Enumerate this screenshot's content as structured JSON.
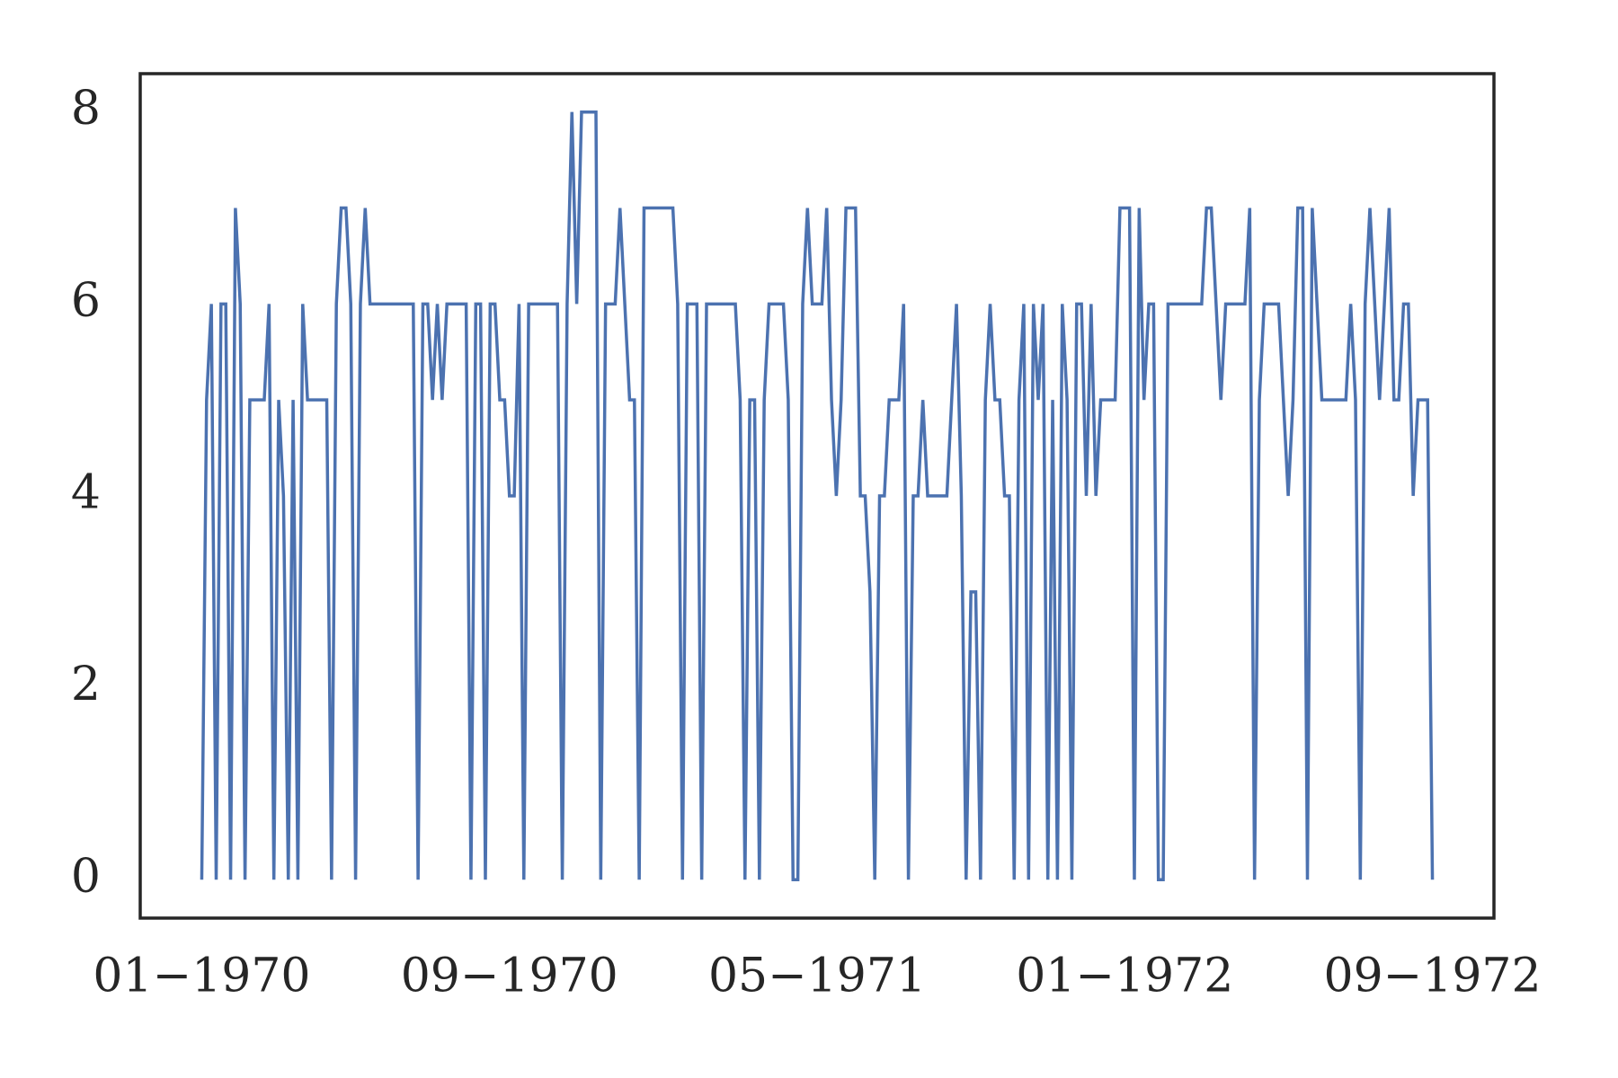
{
  "chart_data": {
    "type": "line",
    "x": [
      "1970-01",
      "1970-01",
      "1970-01",
      "1970-01",
      "1970-01",
      "1970-01",
      "1970-01",
      "1970-01",
      "1970-02",
      "1970-02",
      "1970-02",
      "1970-02",
      "1970-02",
      "1970-02",
      "1970-02",
      "1970-02",
      "1970-03",
      "1970-03",
      "1970-03",
      "1970-03",
      "1970-03",
      "1970-03",
      "1970-03",
      "1970-03",
      "1970-04",
      "1970-04",
      "1970-04",
      "1970-04",
      "1970-04",
      "1970-04",
      "1970-04",
      "1970-04",
      "1970-05",
      "1970-05",
      "1970-05",
      "1970-05",
      "1970-05",
      "1970-05",
      "1970-05",
      "1970-05",
      "1970-06",
      "1970-06",
      "1970-06",
      "1970-06",
      "1970-06",
      "1970-06",
      "1970-06",
      "1970-06",
      "1970-07",
      "1970-07",
      "1970-07",
      "1970-07",
      "1970-07",
      "1970-07",
      "1970-07",
      "1970-07",
      "1970-08",
      "1970-08",
      "1970-08",
      "1970-08",
      "1970-08",
      "1970-08",
      "1970-08",
      "1970-08",
      "1970-09",
      "1970-09",
      "1970-09",
      "1970-09",
      "1970-09",
      "1970-09",
      "1970-09",
      "1970-09",
      "1970-10",
      "1970-10",
      "1970-10",
      "1970-10",
      "1970-10",
      "1970-10",
      "1970-10",
      "1970-10",
      "1970-11",
      "1970-11",
      "1970-11",
      "1970-11",
      "1970-11",
      "1970-11",
      "1970-11",
      "1970-11",
      "1970-12",
      "1970-12",
      "1970-12",
      "1970-12",
      "1970-12",
      "1970-12",
      "1970-12",
      "1970-12",
      "1971-01",
      "1971-01",
      "1971-01",
      "1971-01",
      "1971-01",
      "1971-01",
      "1971-01",
      "1971-01",
      "1971-02",
      "1971-02",
      "1971-02",
      "1971-02",
      "1971-02",
      "1971-02",
      "1971-02",
      "1971-02",
      "1971-03",
      "1971-03",
      "1971-03",
      "1971-03",
      "1971-03",
      "1971-03",
      "1971-03",
      "1971-03",
      "1971-04",
      "1971-04",
      "1971-04",
      "1971-04",
      "1971-04",
      "1971-04",
      "1971-04",
      "1971-04",
      "1971-05",
      "1971-05",
      "1971-05",
      "1971-05",
      "1971-05",
      "1971-05",
      "1971-05",
      "1971-05",
      "1971-06",
      "1971-06",
      "1971-06",
      "1971-06",
      "1971-06",
      "1971-06",
      "1971-06",
      "1971-06",
      "1971-07",
      "1971-07",
      "1971-07",
      "1971-07",
      "1971-07",
      "1971-07",
      "1971-07",
      "1971-07",
      "1971-08",
      "1971-08",
      "1971-08",
      "1971-08",
      "1971-08",
      "1971-08",
      "1971-08",
      "1971-08",
      "1971-09",
      "1971-09",
      "1971-09",
      "1971-09",
      "1971-09",
      "1971-09",
      "1971-09",
      "1971-09",
      "1971-10",
      "1971-10",
      "1971-10",
      "1971-10",
      "1971-10",
      "1971-10",
      "1971-10",
      "1971-10",
      "1971-11",
      "1971-11",
      "1971-11",
      "1971-11",
      "1971-11",
      "1971-11",
      "1971-11",
      "1971-11",
      "1971-12",
      "1971-12",
      "1971-12",
      "1971-12",
      "1971-12",
      "1971-12",
      "1971-12",
      "1971-12",
      "1972-01",
      "1972-01",
      "1972-01",
      "1972-01",
      "1972-01",
      "1972-01",
      "1972-01",
      "1972-01",
      "1972-02",
      "1972-02",
      "1972-02",
      "1972-02",
      "1972-02",
      "1972-02",
      "1972-02",
      "1972-02",
      "1972-03",
      "1972-03",
      "1972-03",
      "1972-03",
      "1972-03",
      "1972-03",
      "1972-03",
      "1972-03",
      "1972-04",
      "1972-04",
      "1972-04",
      "1972-04",
      "1972-04",
      "1972-04",
      "1972-04",
      "1972-04",
      "1972-05",
      "1972-05",
      "1972-05",
      "1972-05",
      "1972-05",
      "1972-05",
      "1972-05",
      "1972-05",
      "1972-06",
      "1972-06",
      "1972-06",
      "1972-06",
      "1972-06",
      "1972-06",
      "1972-06",
      "1972-06",
      "1972-07",
      "1972-07",
      "1972-07",
      "1972-07",
      "1972-07",
      "1972-07",
      "1972-07",
      "1972-07",
      "1972-08",
      "1972-08",
      "1972-08",
      "1972-08",
      "1972-08",
      "1972-08",
      "1972-08",
      "1972-08",
      "1972-09"
    ],
    "values": [
      0,
      5,
      6,
      0,
      6,
      6,
      0,
      7,
      6,
      0,
      5,
      5,
      5,
      5,
      6,
      0,
      5,
      4,
      0,
      5,
      0,
      6,
      5,
      5,
      5,
      5,
      5,
      0,
      6,
      7,
      7,
      6,
      0,
      6,
      7,
      6,
      6,
      6,
      6,
      6,
      6,
      6,
      6,
      6,
      6,
      0,
      6,
      6,
      5,
      6,
      5,
      6,
      6,
      6,
      6,
      6,
      0,
      6,
      6,
      0,
      6,
      6,
      5,
      5,
      4,
      4,
      6,
      0,
      6,
      6,
      6,
      6,
      6,
      6,
      6,
      0,
      6,
      8,
      6,
      8,
      8,
      8,
      8,
      0,
      6,
      6,
      6,
      7,
      6,
      5,
      5,
      0,
      7,
      7,
      7,
      7,
      7,
      7,
      7,
      6,
      0,
      6,
      6,
      6,
      0,
      6,
      6,
      6,
      6,
      6,
      6,
      6,
      5,
      0,
      5,
      5,
      0,
      5,
      6,
      6,
      6,
      6,
      5,
      0,
      0,
      6,
      7,
      6,
      6,
      6,
      7,
      5,
      4,
      5,
      7,
      7,
      7,
      4,
      4,
      3,
      0,
      4,
      4,
      5,
      5,
      5,
      6,
      0,
      4,
      4,
      5,
      4,
      4,
      4,
      4,
      4,
      5,
      6,
      4,
      0,
      3,
      3,
      0,
      5,
      6,
      5,
      5,
      4,
      4,
      0,
      5,
      6,
      0,
      6,
      5,
      6,
      0,
      5,
      0,
      6,
      5,
      0,
      6,
      6,
      4,
      6,
      4,
      5,
      5,
      5,
      5,
      7,
      7,
      7,
      0,
      7,
      5,
      6,
      6,
      0,
      0,
      6,
      6,
      6,
      6,
      6,
      6,
      6,
      6,
      7,
      7,
      6,
      5,
      6,
      6,
      6,
      6,
      6,
      7,
      0,
      5,
      6,
      6,
      6,
      6,
      5,
      4,
      5,
      7,
      7,
      0,
      7,
      6,
      5,
      5,
      5,
      5,
      5,
      5,
      6,
      5,
      0,
      6,
      7,
      6,
      5,
      6,
      7,
      5,
      5,
      6,
      6,
      4,
      5,
      5,
      5,
      0
    ],
    "color": "#4c72b0",
    "ylim": [
      -0.4,
      8.4
    ],
    "yticks": [
      0,
      2,
      4,
      6,
      8
    ],
    "xticks": [
      {
        "value": "1970-01",
        "label": "01−1970"
      },
      {
        "value": "1970-09",
        "label": "09−1970"
      },
      {
        "value": "1971-05",
        "label": "05−1971"
      },
      {
        "value": "1972-01",
        "label": "01−1972"
      },
      {
        "value": "1972-09",
        "label": "09−1972"
      }
    ],
    "grid": false
  }
}
